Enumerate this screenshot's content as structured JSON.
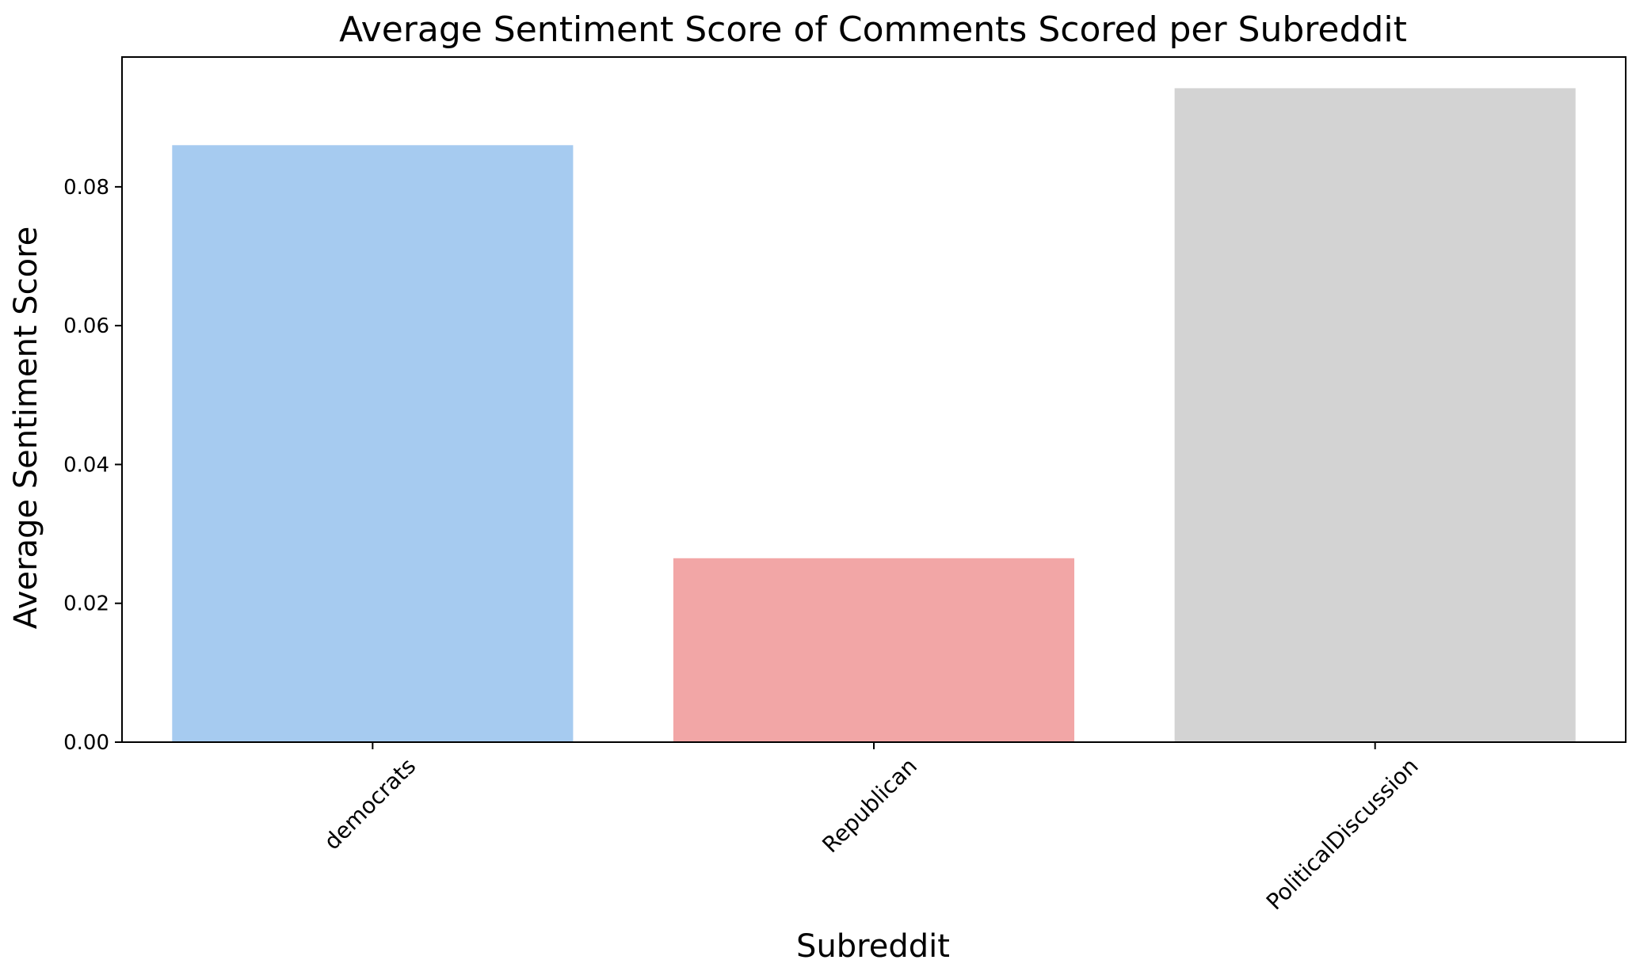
{
  "chart_data": {
    "type": "bar",
    "title": "Average Sentiment Score of Comments Scored per Subreddit",
    "xlabel": "Subreddit",
    "ylabel": "Average Sentiment Score",
    "categories": [
      "democrats",
      "Republican",
      "PoliticalDiscussion"
    ],
    "values": [
      0.086,
      0.0265,
      0.0942
    ],
    "colors": [
      "#a6cbf0",
      "#f2a6a6",
      "#d3d3d3"
    ],
    "ylim": [
      0,
      0.0987
    ],
    "yticks": [
      0.0,
      0.02,
      0.04,
      0.06,
      0.08
    ],
    "ytick_labels": [
      "0.00",
      "0.02",
      "0.04",
      "0.06",
      "0.08"
    ],
    "grid": false,
    "legend": "none",
    "zero_line": "dashed"
  }
}
